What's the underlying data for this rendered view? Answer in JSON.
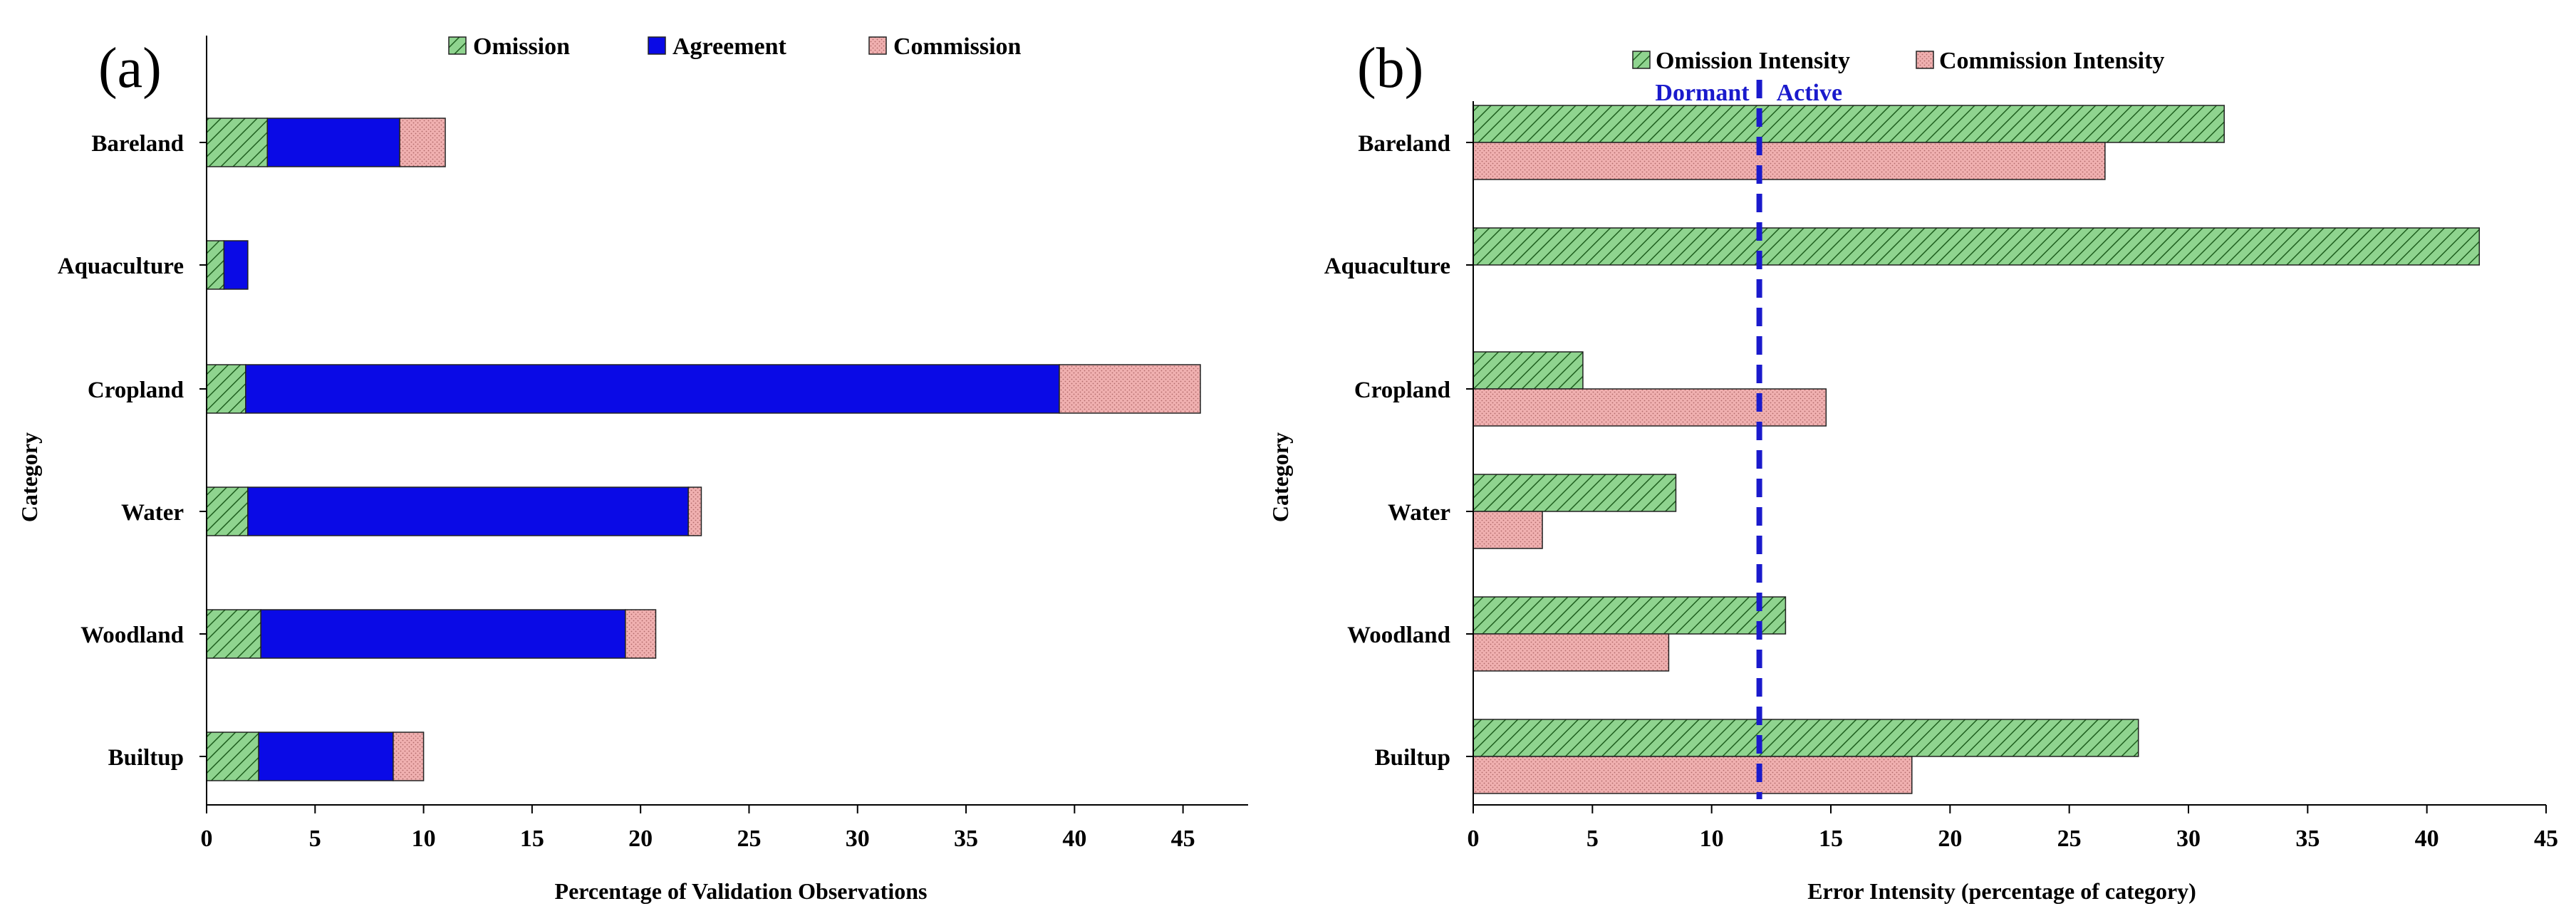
{
  "chart_data": [
    {
      "type": "bar",
      "orientation": "horizontal",
      "stacked": true,
      "panel_label": "(a)",
      "categories": [
        "Bareland",
        "Aquaculture",
        "Cropland",
        "Water",
        "Woodland",
        "Builtup"
      ],
      "series": [
        {
          "name": "Omission",
          "values": [
            2.8,
            0.8,
            1.8,
            1.9,
            2.5,
            2.4
          ]
        },
        {
          "name": "Agreement",
          "values": [
            6.1,
            1.1,
            37.5,
            20.3,
            16.8,
            6.2
          ]
        },
        {
          "name": "Commission",
          "values": [
            2.1,
            0.0,
            6.5,
            0.6,
            1.4,
            1.4
          ]
        }
      ],
      "xlabel": "Percentage of Validation  Observations",
      "ylabel": "Category",
      "xlim": [
        0,
        48
      ],
      "xticks": [
        "0",
        "5",
        "10",
        "15",
        "20",
        "25",
        "30",
        "35",
        "40",
        "45"
      ],
      "colors": {
        "Omission": "#8fd48f",
        "Agreement": "#0a0ae6",
        "Commission": "#f0b0b0"
      }
    },
    {
      "type": "bar",
      "orientation": "horizontal",
      "stacked": false,
      "panel_label": "(b)",
      "categories": [
        "Bareland",
        "Aquaculture",
        "Cropland",
        "Water",
        "Woodland",
        "Builtup"
      ],
      "series": [
        {
          "name": "Omission Intensity",
          "values": [
            31.5,
            42.2,
            4.6,
            8.5,
            13.1,
            27.9
          ]
        },
        {
          "name": "Commission Intensity",
          "values": [
            26.5,
            0,
            14.8,
            2.9,
            8.2,
            18.4
          ]
        }
      ],
      "xlabel": "Error Intensity (percentage of category)",
      "ylabel": "Category",
      "xlim": [
        0,
        45
      ],
      "xticks": [
        "0",
        "5",
        "10",
        "15",
        "20",
        "25",
        "30",
        "35",
        "40",
        "45"
      ],
      "threshold": 12.0,
      "threshold_labels": {
        "left": "Dormant",
        "right": "Active"
      },
      "colors": {
        "Omission Intensity": "#8fd48f",
        "Commission Intensity": "#f0b0b0",
        "threshold": "#1a1acc"
      }
    }
  ]
}
